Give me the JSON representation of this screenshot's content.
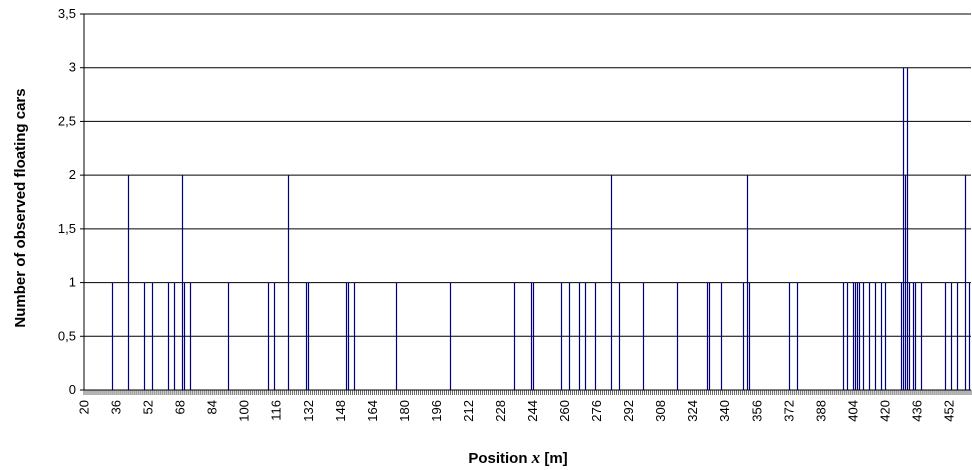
{
  "chart_data": {
    "type": "bar",
    "xlabel_parts": [
      "Position ",
      "x",
      "  [m]"
    ],
    "ylabel": "Number of observed floating cars",
    "ylim": [
      0,
      3.5
    ],
    "yticks": [
      "0",
      "0,5",
      "1",
      "1,5",
      "2",
      "2,5",
      "3",
      "3,5"
    ],
    "ytick_values": [
      0,
      0.5,
      1,
      1.5,
      2,
      2.5,
      3,
      3.5
    ],
    "xlim": [
      20,
      463
    ],
    "xticks": [
      20,
      36,
      52,
      68,
      84,
      100,
      116,
      132,
      148,
      164,
      180,
      196,
      212,
      228,
      244,
      260,
      276,
      292,
      308,
      324,
      340,
      356,
      372,
      388,
      404,
      420,
      436,
      452
    ],
    "grid": true,
    "legend": "none",
    "bar_color": "#000080",
    "points": [
      {
        "x": 34,
        "y": 1
      },
      {
        "x": 42,
        "y": 2
      },
      {
        "x": 50,
        "y": 1
      },
      {
        "x": 54,
        "y": 1
      },
      {
        "x": 62,
        "y": 1
      },
      {
        "x": 65,
        "y": 1
      },
      {
        "x": 69,
        "y": 2
      },
      {
        "x": 70,
        "y": 1
      },
      {
        "x": 73,
        "y": 1
      },
      {
        "x": 92,
        "y": 1
      },
      {
        "x": 112,
        "y": 1
      },
      {
        "x": 115,
        "y": 1
      },
      {
        "x": 122,
        "y": 2
      },
      {
        "x": 131,
        "y": 1
      },
      {
        "x": 132,
        "y": 1
      },
      {
        "x": 151,
        "y": 1
      },
      {
        "x": 152,
        "y": 1
      },
      {
        "x": 155,
        "y": 1
      },
      {
        "x": 176,
        "y": 1
      },
      {
        "x": 203,
        "y": 1
      },
      {
        "x": 235,
        "y": 1
      },
      {
        "x": 243,
        "y": 1
      },
      {
        "x": 244,
        "y": 1
      },
      {
        "x": 258,
        "y": 1
      },
      {
        "x": 262,
        "y": 1
      },
      {
        "x": 267,
        "y": 1
      },
      {
        "x": 270,
        "y": 1
      },
      {
        "x": 275,
        "y": 1
      },
      {
        "x": 283,
        "y": 2
      },
      {
        "x": 287,
        "y": 1
      },
      {
        "x": 299,
        "y": 1
      },
      {
        "x": 316,
        "y": 1
      },
      {
        "x": 331,
        "y": 1
      },
      {
        "x": 332,
        "y": 1
      },
      {
        "x": 338,
        "y": 1
      },
      {
        "x": 349,
        "y": 1
      },
      {
        "x": 351,
        "y": 2
      },
      {
        "x": 352,
        "y": 1
      },
      {
        "x": 372,
        "y": 1
      },
      {
        "x": 376,
        "y": 1
      },
      {
        "x": 399,
        "y": 1
      },
      {
        "x": 401,
        "y": 1
      },
      {
        "x": 404,
        "y": 1
      },
      {
        "x": 405,
        "y": 1
      },
      {
        "x": 406,
        "y": 1
      },
      {
        "x": 407,
        "y": 1
      },
      {
        "x": 409,
        "y": 1
      },
      {
        "x": 412,
        "y": 1
      },
      {
        "x": 415,
        "y": 1
      },
      {
        "x": 418,
        "y": 1
      },
      {
        "x": 420,
        "y": 1
      },
      {
        "x": 428,
        "y": 1
      },
      {
        "x": 429,
        "y": 3
      },
      {
        "x": 430,
        "y": 2
      },
      {
        "x": 431,
        "y": 3
      },
      {
        "x": 432,
        "y": 1
      },
      {
        "x": 434,
        "y": 1
      },
      {
        "x": 435,
        "y": 1
      },
      {
        "x": 438,
        "y": 1
      },
      {
        "x": 450,
        "y": 1
      },
      {
        "x": 453,
        "y": 1
      },
      {
        "x": 456,
        "y": 1
      },
      {
        "x": 460,
        "y": 2
      },
      {
        "x": 462,
        "y": 1
      }
    ]
  }
}
